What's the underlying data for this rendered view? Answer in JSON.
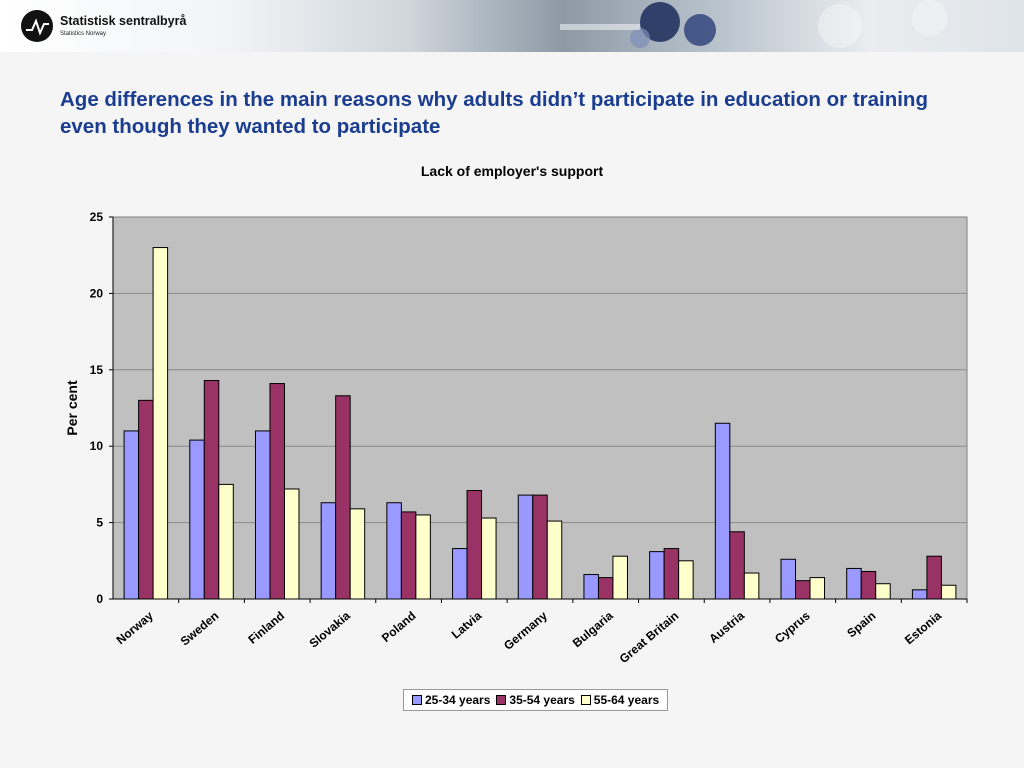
{
  "header": {
    "org_name": "Statistisk sentralbyrå",
    "org_sub": "Statistics Norway"
  },
  "slide_title": "Age differences in the main reasons why adults didn’t participate in education or training even though they wanted to participate",
  "colors": {
    "title": "#1a3d8f",
    "plot_background": "#c0c0c0",
    "series": [
      "#9999ff",
      "#993366",
      "#ffffcc"
    ]
  },
  "chart_data": {
    "type": "bar",
    "title": "Lack of employer's support",
    "xlabel": "",
    "ylabel": "Per cent",
    "ylim": [
      0,
      25
    ],
    "yticks": [
      0,
      5,
      10,
      15,
      20,
      25
    ],
    "grid": true,
    "legend_position": "bottom",
    "categories": [
      "Norway",
      "Sweden",
      "Finland",
      "Slovakia",
      "Poland",
      "Latvia",
      "Germany",
      "Bulgaria",
      "Great Britain",
      "Austria",
      "Cyprus",
      "Spain",
      "Estonia"
    ],
    "series": [
      {
        "name": "25-34 years",
        "values": [
          11.0,
          10.4,
          11.0,
          6.3,
          6.3,
          3.3,
          6.8,
          1.6,
          3.1,
          11.5,
          2.6,
          2.0,
          0.6
        ]
      },
      {
        "name": "35-54 years",
        "values": [
          13.0,
          14.3,
          14.1,
          13.3,
          5.7,
          7.1,
          6.8,
          1.4,
          3.3,
          4.4,
          1.2,
          1.8,
          2.8
        ]
      },
      {
        "name": "55-64 years",
        "values": [
          23.0,
          7.5,
          7.2,
          5.9,
          5.5,
          5.3,
          5.1,
          2.8,
          2.5,
          1.7,
          1.4,
          1.0,
          0.9
        ]
      }
    ]
  }
}
